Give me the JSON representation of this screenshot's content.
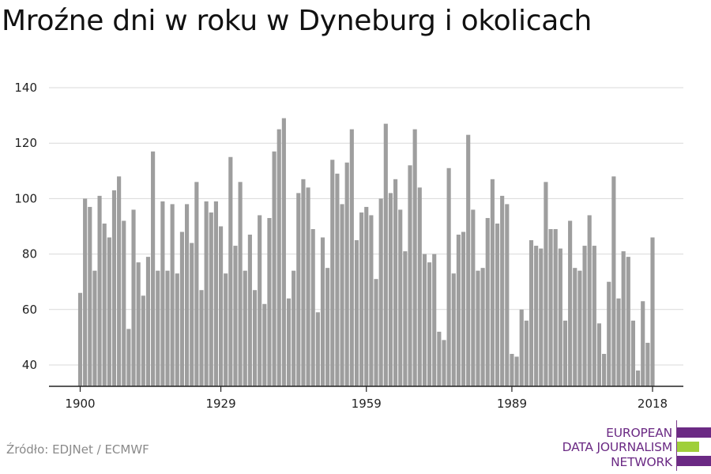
{
  "header": {
    "title": "Mroźne dni w roku w Dyneburg i okolicach"
  },
  "footer": {
    "source": "Źródło: EDJNet / ECMWF"
  },
  "logo": {
    "lines": [
      "EUROPEAN",
      "DATA JOURNALISM",
      "NETWORK"
    ],
    "colors": {
      "purple": "#6b2a84",
      "green": "#9fcf3a"
    }
  },
  "chart_data": {
    "type": "bar",
    "title": "Mroźne dni w roku w Dyneburg i okolicach",
    "xlabel": "",
    "ylabel": "",
    "x": [
      1900,
      1901,
      1902,
      1903,
      1904,
      1905,
      1906,
      1907,
      1908,
      1909,
      1910,
      1911,
      1912,
      1913,
      1914,
      1915,
      1916,
      1917,
      1918,
      1919,
      1920,
      1921,
      1922,
      1923,
      1924,
      1925,
      1926,
      1927,
      1928,
      1929,
      1930,
      1931,
      1932,
      1933,
      1934,
      1935,
      1936,
      1937,
      1938,
      1939,
      1940,
      1941,
      1942,
      1943,
      1944,
      1945,
      1946,
      1947,
      1948,
      1949,
      1950,
      1951,
      1952,
      1953,
      1954,
      1955,
      1956,
      1957,
      1958,
      1959,
      1960,
      1961,
      1962,
      1963,
      1964,
      1965,
      1966,
      1967,
      1968,
      1969,
      1970,
      1971,
      1972,
      1973,
      1974,
      1975,
      1976,
      1977,
      1978,
      1979,
      1980,
      1981,
      1982,
      1983,
      1984,
      1985,
      1986,
      1987,
      1988,
      1989,
      1990,
      1991,
      1992,
      1993,
      1994,
      1995,
      1996,
      1997,
      1998,
      1999,
      2000,
      2001,
      2002,
      2003,
      2004,
      2005,
      2006,
      2007,
      2008,
      2009,
      2010,
      2011,
      2012,
      2013,
      2014,
      2015,
      2016,
      2017,
      2018
    ],
    "values": [
      66,
      100,
      97,
      74,
      101,
      91,
      86,
      103,
      108,
      92,
      53,
      96,
      77,
      65,
      79,
      117,
      74,
      99,
      74,
      98,
      73,
      88,
      98,
      84,
      106,
      67,
      99,
      95,
      99,
      90,
      73,
      115,
      83,
      106,
      74,
      87,
      67,
      94,
      62,
      93,
      117,
      125,
      129,
      64,
      74,
      102,
      107,
      104,
      89,
      59,
      86,
      75,
      114,
      109,
      98,
      113,
      125,
      85,
      95,
      97,
      94,
      71,
      100,
      127,
      102,
      107,
      96,
      81,
      112,
      125,
      104,
      80,
      77,
      80,
      52,
      49,
      111,
      73,
      87,
      88,
      123,
      96,
      74,
      75,
      93,
      107,
      91,
      101,
      98,
      44,
      43,
      60,
      56,
      85,
      83,
      82,
      106,
      89,
      89,
      82,
      56,
      92,
      75,
      74,
      83,
      94,
      83,
      55,
      44,
      70,
      108,
      64,
      81,
      79,
      56,
      38,
      63,
      48,
      86
    ],
    "xticks": [
      "1900",
      "1929",
      "1959",
      "1989",
      "2018"
    ],
    "xtick_years": [
      1900,
      1929,
      1959,
      1989,
      2018
    ],
    "yticks": [
      40,
      60,
      80,
      100,
      120,
      140
    ],
    "ylim": [
      32,
      140
    ],
    "grid": true,
    "bar_color": "#9e9e9e"
  }
}
